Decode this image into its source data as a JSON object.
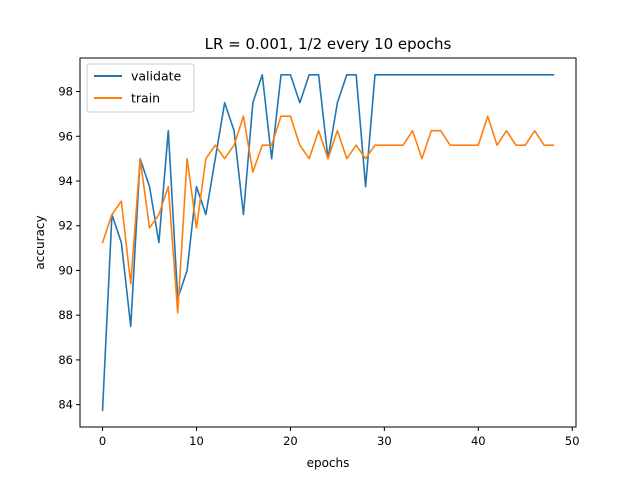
{
  "chart_data": {
    "type": "line",
    "title": "LR = 0.001, 1/2 every 10 epochs",
    "xlabel": "epochs",
    "ylabel": "accuracy",
    "xlim": [
      -2.4,
      50.4
    ],
    "ylim": [
      83.0,
      99.5
    ],
    "xticks": [
      0,
      10,
      20,
      30,
      40,
      50
    ],
    "yticks": [
      84,
      86,
      88,
      90,
      92,
      94,
      96,
      98
    ],
    "grid": false,
    "legend": "top-left",
    "x": [
      0,
      1,
      2,
      3,
      4,
      5,
      6,
      7,
      8,
      9,
      10,
      11,
      12,
      13,
      14,
      15,
      16,
      17,
      18,
      19,
      20,
      21,
      22,
      23,
      24,
      25,
      26,
      27,
      28,
      29,
      30,
      31,
      32,
      33,
      34,
      35,
      36,
      37,
      38,
      39,
      40,
      41,
      42,
      43,
      44,
      45,
      46,
      47,
      48
    ],
    "series": [
      {
        "name": "validate",
        "color": "#1f77b4",
        "values": [
          83.75,
          92.5,
          91.25,
          87.5,
          95.0,
          93.75,
          91.25,
          96.25,
          88.75,
          90.0,
          93.75,
          92.5,
          95.0,
          97.5,
          96.25,
          92.5,
          97.5,
          98.75,
          95.0,
          98.75,
          98.75,
          97.5,
          98.75,
          98.75,
          95.0,
          97.5,
          98.75,
          98.75,
          93.75,
          98.75,
          98.75,
          98.75,
          98.75,
          98.75,
          98.75,
          98.75,
          98.75,
          98.75,
          98.75,
          98.75,
          98.75,
          98.75,
          98.75,
          98.75,
          98.75,
          98.75,
          98.75,
          98.75,
          98.75
        ]
      },
      {
        "name": "train",
        "color": "#ff7f0e",
        "values": [
          91.25,
          92.5,
          93.1,
          89.4,
          95.0,
          91.9,
          92.5,
          93.75,
          88.1,
          95.0,
          91.9,
          95.0,
          95.6,
          95.0,
          95.6,
          96.9,
          94.4,
          95.6,
          95.6,
          96.9,
          96.9,
          95.6,
          95.0,
          96.25,
          95.0,
          96.25,
          95.0,
          95.6,
          95.0,
          95.6,
          95.6,
          95.6,
          95.6,
          96.25,
          95.0,
          96.25,
          96.25,
          95.6,
          95.6,
          95.6,
          95.6,
          96.9,
          95.6,
          96.25,
          95.6,
          95.6,
          96.25,
          95.6,
          95.6
        ]
      }
    ]
  }
}
